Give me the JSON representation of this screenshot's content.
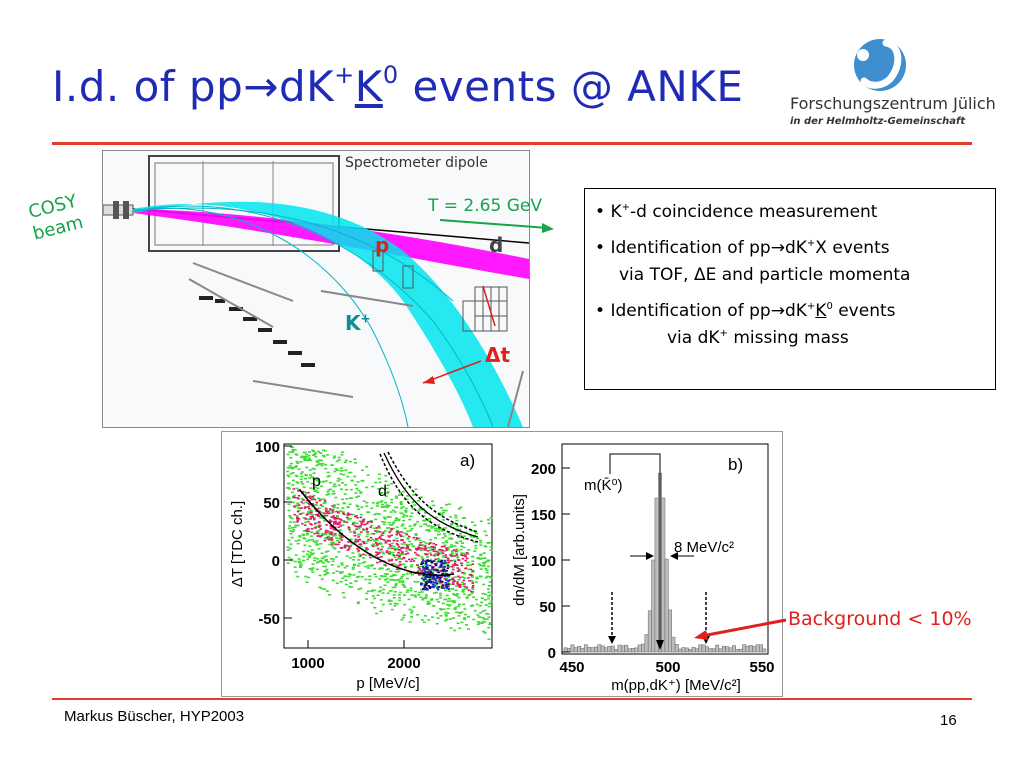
{
  "slide": {
    "title": {
      "part1": "I.d. of pp",
      "arrow": "→",
      "part2": "dK",
      "sup_plus": "+",
      "kbar": "K",
      "sup_zero": "0",
      "part3": " events @ ANKE"
    },
    "logo": {
      "name": "Forschungszentrum Jülich",
      "subtitle": "in der Helmholtz-Gemeinschaft"
    },
    "detector": {
      "spectrometer_label": "Spectrometer dipole",
      "energy_label": "T = 2.65 GeV",
      "cosy": "COSY",
      "beam": "beam",
      "p_label": "p",
      "d_label": "d",
      "k_label": "K",
      "k_sup": "+",
      "dt_label": "Δt",
      "colors": {
        "beam_tracks": "#00e5ee",
        "deuteron_band": "#ff00ff",
        "label_red": "#e0201a",
        "cosy_green": "#17a34a"
      }
    },
    "info": {
      "b1_bullet": "•",
      "b1_k": "K",
      "b1_sup": "+",
      "b1_rest": "-d coincidence measurement",
      "b2_start": "Identification of pp",
      "b2_arrow": "→",
      "b2_dk": "dK",
      "b2_sup": "+",
      "b2_x": "X events",
      "b2_line2": "via TOF, ΔE and particle momenta",
      "b3_start": "Identification of pp",
      "b3_arrow": "→",
      "b3_dk": "dK",
      "b3_sup": "+",
      "b3_k": "K",
      "b3_zero": "0",
      "b3_end": " events",
      "b3_line2a": "via dK",
      "b3_line2sup": "+",
      "b3_line2b": " missing mass"
    },
    "plots": {
      "a": {
        "panel_label": "a)",
        "ylabel": "ΔT   [TDC ch.]",
        "xlabel": "p   [MeV/c]",
        "yticks": [
          "100",
          "50",
          "0",
          "-50"
        ],
        "xticks": [
          "1000",
          "2000"
        ],
        "curve_p": "p",
        "curve_d": "d"
      },
      "b": {
        "panel_label": "b)",
        "ylabel": "dn/dM   [arb.units]",
        "xlabel": "m(pp,dK⁺)   [MeV/c²]",
        "yticks": [
          "200",
          "150",
          "100",
          "50",
          "0"
        ],
        "xticks": [
          "450",
          "500",
          "550"
        ],
        "peak_label": "m(K̄⁰)",
        "width_label": "8 MeV/c²",
        "chart_data": {
          "type": "bar",
          "x_range": [
            440,
            560
          ],
          "ylim": [
            0,
            220
          ],
          "peak_mass": 497,
          "peak_height": 210,
          "width": 8
        }
      }
    },
    "background_label": "Background < 10%",
    "footer": {
      "author": "Markus Büscher, HYP2003",
      "page": "16"
    }
  }
}
